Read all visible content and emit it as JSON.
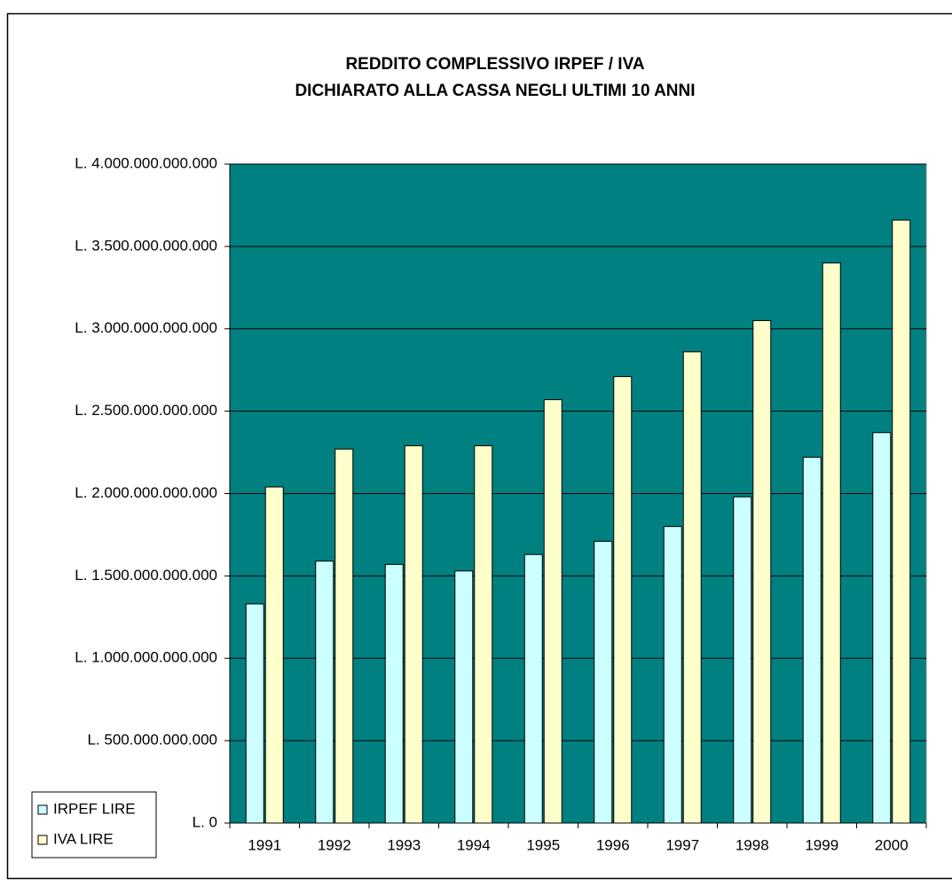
{
  "chart_data": {
    "type": "bar",
    "title": [
      "REDDITO COMPLESSIVO IRPEF / IVA",
      "DICHIARATO ALLA CASSA NEGLI ULTIMI 10 ANNI"
    ],
    "categories": [
      "1991",
      "1992",
      "1993",
      "1994",
      "1995",
      "1996",
      "1997",
      "1998",
      "1999",
      "2000"
    ],
    "series": [
      {
        "name": "IRPEF LIRE",
        "color": "#ccffff",
        "values": [
          1330000000000,
          1590000000000,
          1570000000000,
          1530000000000,
          1630000000000,
          1710000000000,
          1800000000000,
          1980000000000,
          2220000000000,
          2370000000000
        ]
      },
      {
        "name": "IVA LIRE",
        "color": "#ffffcc",
        "values": [
          2040000000000,
          2270000000000,
          2290000000000,
          2290000000000,
          2570000000000,
          2710000000000,
          2860000000000,
          3050000000000,
          3400000000000,
          3660000000000
        ]
      }
    ],
    "ylim": [
      0,
      4000000000000
    ],
    "yticks": [
      {
        "value": 0,
        "label": "L. 0"
      },
      {
        "value": 500000000000,
        "label": "L. 500.000.000.000"
      },
      {
        "value": 1000000000000,
        "label": "L. 1.000.000.000.000"
      },
      {
        "value": 1500000000000,
        "label": "L. 1.500.000.000.000"
      },
      {
        "value": 2000000000000,
        "label": "L. 2.000.000.000.000"
      },
      {
        "value": 2500000000000,
        "label": "L. 2.500.000.000.000"
      },
      {
        "value": 3000000000000,
        "label": "L. 3.000.000.000.000"
      },
      {
        "value": 3500000000000,
        "label": "L. 3.500.000.000.000"
      },
      {
        "value": 4000000000000,
        "label": "L. 4.000.000.000.000"
      }
    ],
    "grid": true,
    "plot_background": "#008080",
    "legend": "bottom-left"
  }
}
